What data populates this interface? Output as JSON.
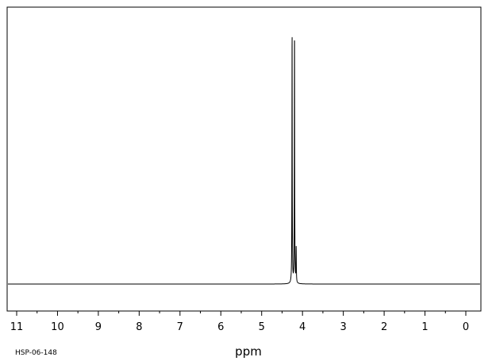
{
  "chart_data": {
    "type": "line",
    "title": "",
    "xlabel": "ppm",
    "ylabel": "",
    "x_reversed": true,
    "xlim": [
      11,
      0
    ],
    "ylim": [
      -0.1,
      1.0
    ],
    "grid": false,
    "ticks": [
      {
        "value": 11,
        "label": "11"
      },
      {
        "value": 10,
        "label": "10"
      },
      {
        "value": 9,
        "label": "9"
      },
      {
        "value": 8,
        "label": "8"
      },
      {
        "value": 7,
        "label": "7"
      },
      {
        "value": 6,
        "label": "6"
      },
      {
        "value": 5,
        "label": "5"
      },
      {
        "value": 4,
        "label": "4"
      },
      {
        "value": 3,
        "label": "3"
      },
      {
        "value": 2,
        "label": "2"
      },
      {
        "value": 1,
        "label": "1"
      },
      {
        "value": 0,
        "label": "0"
      }
    ],
    "peaks": [
      {
        "ppm": 4.255,
        "height": 0.955
      },
      {
        "ppm": 4.195,
        "height": 0.955
      },
      {
        "ppm": 4.155,
        "height": 0.13
      }
    ],
    "footer_code": "HSP-06-148"
  }
}
